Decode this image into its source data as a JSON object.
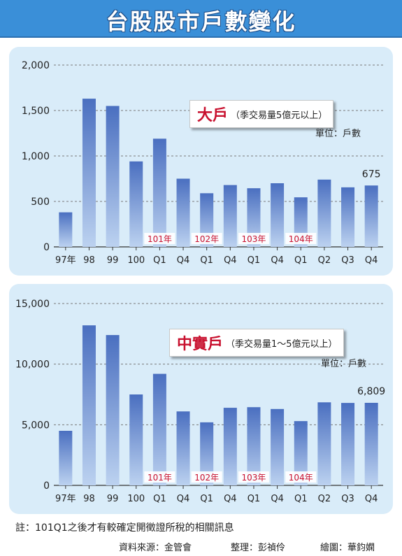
{
  "title": "台股股市戶數變化",
  "colors": {
    "title_bg": "#3a8fd8",
    "panel_bg": "#d9ecf9",
    "bar_top": "#4a6fc0",
    "bar_bottom": "#bcd2f0",
    "accent_red": "#c8102e"
  },
  "x_labels": [
    "97年",
    "98",
    "99",
    "100",
    "Q1",
    "Q4",
    "Q1",
    "Q4",
    "Q1",
    "Q4",
    "Q1",
    "Q2",
    "Q3",
    "Q4"
  ],
  "year_markers": [
    {
      "index": 4,
      "label": "101年"
    },
    {
      "index": 6,
      "label": "102年"
    },
    {
      "index": 8,
      "label": "103年"
    },
    {
      "index": 10,
      "label": "104年"
    }
  ],
  "chart_data": [
    {
      "type": "bar",
      "legend_main": "大戶",
      "legend_sub": "（季交易量5億元以上）",
      "unit": "單位：戶數",
      "categories": [
        "97年",
        "98",
        "99",
        "100",
        "101年Q1",
        "101年Q4",
        "102年Q1",
        "102年Q4",
        "103年Q1",
        "103年Q4",
        "104年Q1",
        "104年Q2",
        "104年Q3",
        "104年Q4"
      ],
      "values": [
        380,
        1630,
        1550,
        940,
        1190,
        750,
        590,
        680,
        645,
        700,
        545,
        740,
        655,
        675
      ],
      "ylim": [
        0,
        2000
      ],
      "yticks": [
        0,
        500,
        1000,
        1500,
        2000
      ],
      "ytick_labels": [
        "0",
        "500",
        "1,000",
        "1,500",
        "2,000"
      ],
      "value_label": {
        "index": 13,
        "text": "675"
      }
    },
    {
      "type": "bar",
      "legend_main": "中實戶",
      "legend_sub": "（季交易量1～5億元以上）",
      "unit": "單位：戶數",
      "categories": [
        "97年",
        "98",
        "99",
        "100",
        "101年Q1",
        "101年Q4",
        "102年Q1",
        "102年Q4",
        "103年Q1",
        "103年Q4",
        "104年Q1",
        "104年Q2",
        "104年Q3",
        "104年Q4"
      ],
      "values": [
        4500,
        13200,
        12400,
        7500,
        9200,
        6100,
        5200,
        6400,
        6450,
        6300,
        5300,
        6850,
        6800,
        6809
      ],
      "ylim": [
        0,
        15000
      ],
      "yticks": [
        0,
        5000,
        10000,
        15000
      ],
      "ytick_labels": [
        "0",
        "5,000",
        "10,000",
        "15,000"
      ],
      "value_label": {
        "index": 13,
        "text": "6,809"
      }
    }
  ],
  "footnote": "註：101Q1之後才有較確定開徵證所稅的相關訊息",
  "credits": {
    "source": "資料來源：金管會",
    "organize": "整理：彭禎伶",
    "drawing": "繪圖：華鈞嫻"
  }
}
